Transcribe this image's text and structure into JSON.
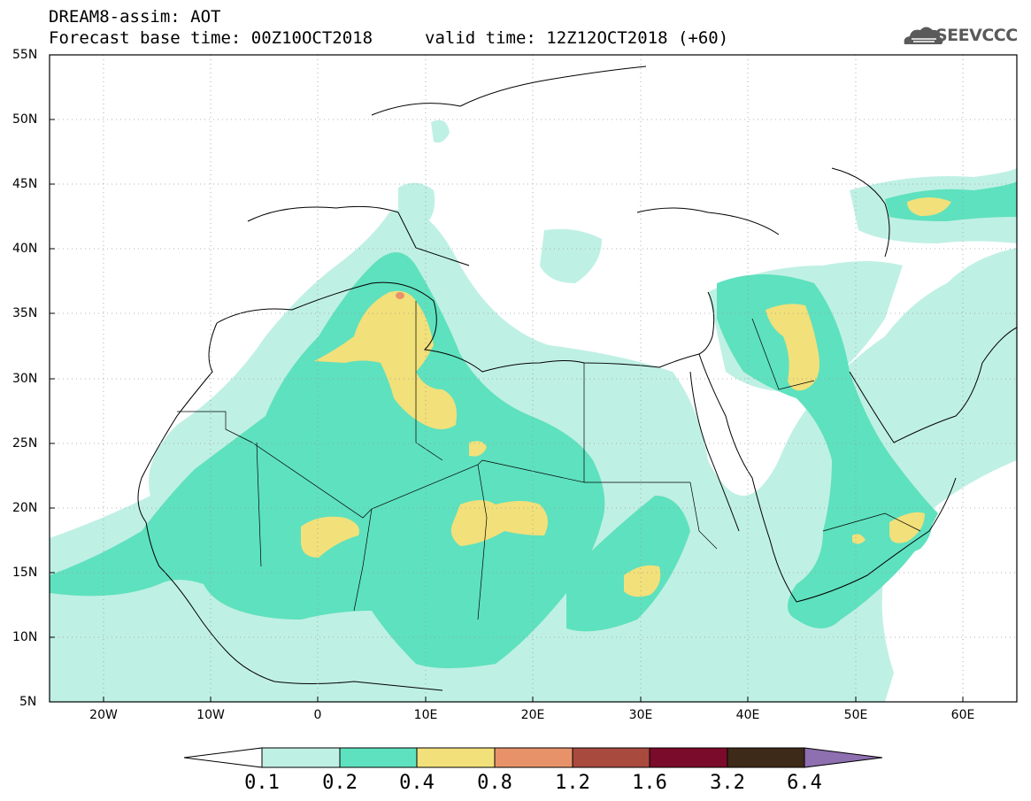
{
  "header": {
    "line1": "DREAM8-assim: AOT",
    "line2_left": "Forecast base time: 00Z10OCT2018",
    "line2_right": "valid time: 12Z12OCT2018 (+60)",
    "logo_text": "SEEVCCC"
  },
  "axes": {
    "lat_labels": [
      "55N",
      "50N",
      "45N",
      "40N",
      "35N",
      "30N",
      "25N",
      "20N",
      "15N",
      "10N",
      "5N"
    ],
    "lon_labels": [
      "20W",
      "10W",
      "0",
      "10E",
      "20E",
      "30E",
      "40E",
      "50E",
      "60E"
    ]
  },
  "colorbar": {
    "labels": [
      "0.1",
      "0.2",
      "0.4",
      "0.8",
      "1.2",
      "1.6",
      "3.2",
      "6.4"
    ],
    "colors": [
      "#ffffff",
      "#bff0e4",
      "#5ee1be",
      "#f2e07a",
      "#e8926a",
      "#a94a3e",
      "#7b0b2a",
      "#3e2a18",
      "#8e6fb0"
    ]
  },
  "chart_data": {
    "type": "heatmap",
    "variable": "AOT",
    "lon_range": [
      -25,
      65
    ],
    "lat_range": [
      5,
      55
    ],
    "levels": [
      0.1,
      0.2,
      0.4,
      0.8,
      1.2,
      1.6,
      3.2,
      6.4
    ],
    "grid": true
  }
}
